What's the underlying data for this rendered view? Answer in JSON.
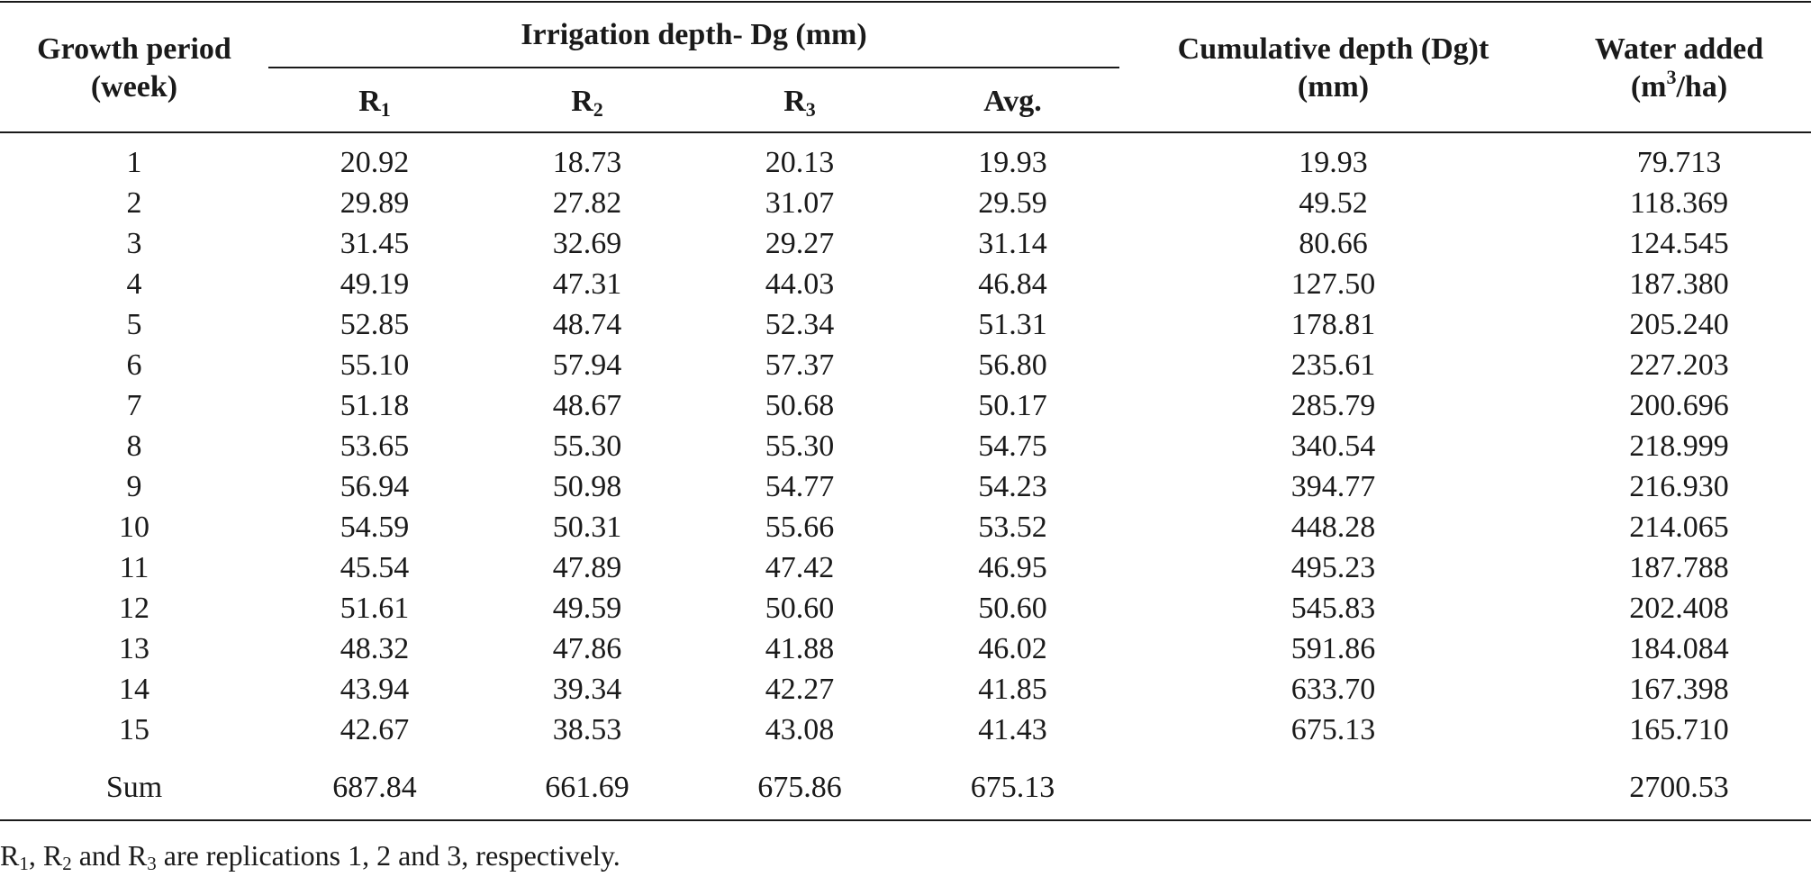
{
  "table": {
    "headers": {
      "growth_line1": "Growth period",
      "growth_line2": "(week)",
      "irrigation": "Irrigation depth- Dg (mm)",
      "r_letter": "R",
      "r1_sub": "1",
      "r2_sub": "2",
      "r3_sub": "3",
      "avg": "Avg.",
      "cum_line1": "Cumulative depth (Dg)t",
      "cum_line2": "(mm)",
      "water_line1": "Water added",
      "water_line2_pre": "(m",
      "water_sup": "3",
      "water_line2_post": "/ha)"
    },
    "rows": [
      {
        "week": "1",
        "r1": "20.92",
        "r2": "18.73",
        "r3": "20.13",
        "avg": "19.93",
        "cum": "19.93",
        "water": "79.713"
      },
      {
        "week": "2",
        "r1": "29.89",
        "r2": "27.82",
        "r3": "31.07",
        "avg": "29.59",
        "cum": "49.52",
        "water": "118.369"
      },
      {
        "week": "3",
        "r1": "31.45",
        "r2": "32.69",
        "r3": "29.27",
        "avg": "31.14",
        "cum": "80.66",
        "water": "124.545"
      },
      {
        "week": "4",
        "r1": "49.19",
        "r2": "47.31",
        "r3": "44.03",
        "avg": "46.84",
        "cum": "127.50",
        "water": "187.380"
      },
      {
        "week": "5",
        "r1": "52.85",
        "r2": "48.74",
        "r3": "52.34",
        "avg": "51.31",
        "cum": "178.81",
        "water": "205.240"
      },
      {
        "week": "6",
        "r1": "55.10",
        "r2": "57.94",
        "r3": "57.37",
        "avg": "56.80",
        "cum": "235.61",
        "water": "227.203"
      },
      {
        "week": "7",
        "r1": "51.18",
        "r2": "48.67",
        "r3": "50.68",
        "avg": "50.17",
        "cum": "285.79",
        "water": "200.696"
      },
      {
        "week": "8",
        "r1": "53.65",
        "r2": "55.30",
        "r3": "55.30",
        "avg": "54.75",
        "cum": "340.54",
        "water": "218.999"
      },
      {
        "week": "9",
        "r1": "56.94",
        "r2": "50.98",
        "r3": "54.77",
        "avg": "54.23",
        "cum": "394.77",
        "water": "216.930"
      },
      {
        "week": "10",
        "r1": "54.59",
        "r2": "50.31",
        "r3": "55.66",
        "avg": "53.52",
        "cum": "448.28",
        "water": "214.065"
      },
      {
        "week": "11",
        "r1": "45.54",
        "r2": "47.89",
        "r3": "47.42",
        "avg": "46.95",
        "cum": "495.23",
        "water": "187.788"
      },
      {
        "week": "12",
        "r1": "51.61",
        "r2": "49.59",
        "r3": "50.60",
        "avg": "50.60",
        "cum": "545.83",
        "water": "202.408"
      },
      {
        "week": "13",
        "r1": "48.32",
        "r2": "47.86",
        "r3": "41.88",
        "avg": "46.02",
        "cum": "591.86",
        "water": "184.084"
      },
      {
        "week": "14",
        "r1": "43.94",
        "r2": "39.34",
        "r3": "42.27",
        "avg": "41.85",
        "cum": "633.70",
        "water": "167.398"
      },
      {
        "week": "15",
        "r1": "42.67",
        "r2": "38.53",
        "r3": "43.08",
        "avg": "41.43",
        "cum": "675.13",
        "water": "165.710"
      }
    ],
    "sum": {
      "label": "Sum",
      "r1": "687.84",
      "r2": "661.69",
      "r3": "675.86",
      "avg": "675.13",
      "cum": "",
      "water": "2700.53"
    }
  },
  "footnote": {
    "r": "R",
    "s1": "1",
    "sep1": ", R",
    "s2": "2",
    "sep2": " and R",
    "s3": "3",
    "tail": " are replications 1, 2 and 3, respectively."
  }
}
